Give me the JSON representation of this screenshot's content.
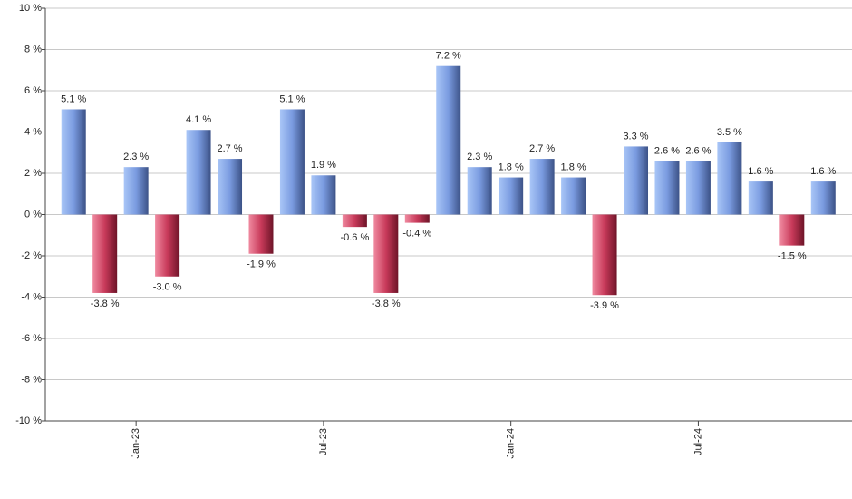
{
  "chart_data": {
    "type": "bar",
    "categories": [
      null,
      null,
      "Jan-23",
      null,
      null,
      null,
      null,
      null,
      "Jul-23",
      null,
      null,
      null,
      null,
      null,
      "Jan-24",
      null,
      null,
      null,
      null,
      null,
      "Jul-24",
      null,
      null,
      null,
      null
    ],
    "values": [
      5.1,
      -3.8,
      2.3,
      -3.0,
      4.1,
      2.7,
      -1.9,
      5.1,
      1.9,
      -0.6,
      -3.8,
      -0.4,
      7.2,
      2.3,
      1.8,
      2.7,
      1.8,
      -3.9,
      3.3,
      2.6,
      2.6,
      3.5,
      1.6,
      -1.5,
      1.6
    ],
    "value_labels": [
      "5.1 %",
      "-3.8 %",
      "2.3 %",
      "-3.0 %",
      "4.1 %",
      "2.7 %",
      "-1.9 %",
      "5.1 %",
      "1.9 %",
      "-0.6 %",
      "-3.8 %",
      "-0.4 %",
      "7.2 %",
      "2.3 %",
      "1.8 %",
      "2.7 %",
      "1.8 %",
      "-3.9 %",
      "3.3 %",
      "2.6 %",
      "2.6 %",
      "3.5 %",
      "1.6 %",
      "-1.5 %",
      "1.6 %"
    ],
    "positive_colors": [
      "#a9c6f7",
      "#7a9be0",
      "#3c5287"
    ],
    "negative_colors": [
      "#f08aa0",
      "#c83a5a",
      "#6e1428"
    ],
    "ylim": [
      -10,
      10
    ],
    "yticks": [
      {
        "value": -10,
        "label": "-10 %"
      },
      {
        "value": -8,
        "label": "-8 %"
      },
      {
        "value": -6,
        "label": "-6 %"
      },
      {
        "value": -4,
        "label": "-4 %"
      },
      {
        "value": -2,
        "label": "-2 %"
      },
      {
        "value": 0,
        "label": "0 %"
      },
      {
        "value": 2,
        "label": "2 %"
      },
      {
        "value": 4,
        "label": "4 %"
      },
      {
        "value": 6,
        "label": "6 %"
      },
      {
        "value": 8,
        "label": "8 %"
      },
      {
        "value": 10,
        "label": "10 %"
      }
    ],
    "grid": true
  }
}
